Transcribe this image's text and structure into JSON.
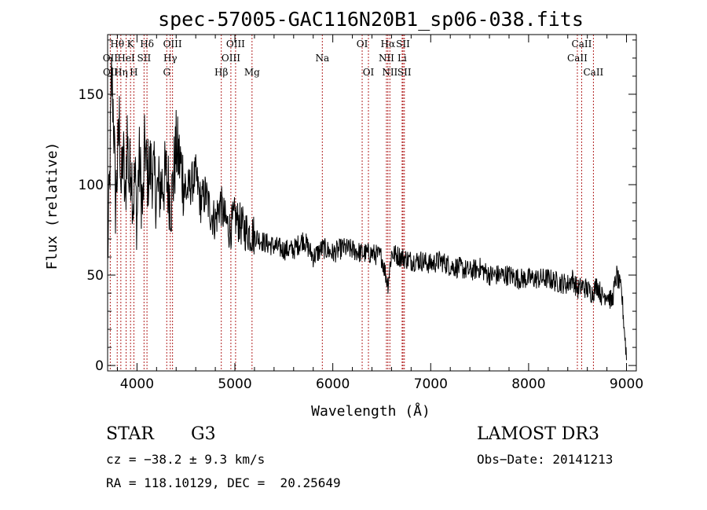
{
  "chart_data": {
    "type": "line",
    "title": "spec-57005-GAC116N20B1_sp06-038.fits",
    "xlabel": "Wavelength (Å)",
    "ylabel": "Flux (relative)",
    "xlim": [
      3700,
      9100
    ],
    "ylim": [
      -3,
      183
    ],
    "x_ticks": [
      4000,
      5000,
      6000,
      7000,
      8000,
      9000
    ],
    "y_ticks": [
      0,
      50,
      100,
      150
    ],
    "series": [
      {
        "name": "flux",
        "x": [
          3700,
          3720,
          3740,
          3760,
          3780,
          3800,
          3820,
          3840,
          3860,
          3880,
          3900,
          3920,
          3940,
          3960,
          3980,
          4000,
          4020,
          4040,
          4060,
          4080,
          4100,
          4150,
          4200,
          4250,
          4300,
          4350,
          4400,
          4450,
          4500,
          4550,
          4600,
          4650,
          4700,
          4750,
          4800,
          4850,
          4900,
          4950,
          5000,
          5100,
          5200,
          5300,
          5400,
          5500,
          5600,
          5700,
          5800,
          5900,
          6000,
          6100,
          6200,
          6300,
          6400,
          6500,
          6563,
          6600,
          6700,
          6800,
          6900,
          7000,
          7100,
          7200,
          7300,
          7400,
          7500,
          7600,
          7700,
          7800,
          7900,
          8000,
          8100,
          8200,
          8300,
          8400,
          8450,
          8500,
          8550,
          8600,
          8650,
          8700,
          8750,
          8800,
          8850,
          8900,
          8950,
          9000
        ],
        "y": [
          60,
          100,
          160,
          140,
          90,
          110,
          135,
          95,
          120,
          85,
          130,
          100,
          115,
          90,
          105,
          80,
          115,
          100,
          85,
          125,
          105,
          110,
          95,
          100,
          105,
          90,
          120,
          110,
          95,
          100,
          105,
          90,
          95,
          85,
          80,
          90,
          80,
          75,
          82,
          75,
          72,
          68,
          66,
          64,
          64,
          70,
          60,
          65,
          62,
          65,
          64,
          62,
          62,
          60,
          45,
          62,
          60,
          58,
          58,
          56,
          58,
          55,
          54,
          52,
          54,
          50,
          50,
          50,
          48,
          48,
          48,
          48,
          46,
          45,
          48,
          42,
          44,
          42,
          40,
          45,
          38,
          40,
          35,
          50,
          40,
          5
        ]
      }
    ],
    "line_labels": [
      {
        "text": "Hθ",
        "wavelength": 3798
      },
      {
        "text": "K",
        "wavelength": 3934
      },
      {
        "text": "Hδ",
        "wavelength": 4102
      },
      {
        "text": "OIII",
        "wavelength": 4363
      },
      {
        "text": "OIII",
        "wavelength": 5007
      },
      {
        "text": "OI",
        "wavelength": 6300
      },
      {
        "text": "Hα",
        "wavelength": 6563
      },
      {
        "text": "SII",
        "wavelength": 6717
      },
      {
        "text": "CaII",
        "wavelength": 8542
      },
      {
        "text": "OII",
        "wavelength": 3727
      },
      {
        "text": "HeI",
        "wavelength": 3889
      },
      {
        "text": "SII",
        "wavelength": 4072
      },
      {
        "text": "Hγ",
        "wavelength": 4340
      },
      {
        "text": "OIII",
        "wavelength": 4959
      },
      {
        "text": "Na",
        "wavelength": 5893
      },
      {
        "text": "NII",
        "wavelength": 6548
      },
      {
        "text": "Li",
        "wavelength": 6708
      },
      {
        "text": "CaII",
        "wavelength": 8498
      },
      {
        "text": "OII",
        "wavelength": 3729
      },
      {
        "text": "Hη",
        "wavelength": 3835
      },
      {
        "text": "H",
        "wavelength": 3968
      },
      {
        "text": "G",
        "wavelength": 4304
      },
      {
        "text": "Hβ",
        "wavelength": 4861
      },
      {
        "text": "Mg",
        "wavelength": 5175
      },
      {
        "text": "OI",
        "wavelength": 6364
      },
      {
        "text": "NII",
        "wavelength": 6583
      },
      {
        "text": "SII",
        "wavelength": 6731
      },
      {
        "text": "CaII",
        "wavelength": 8662
      }
    ],
    "line_markers": [
      3727,
      3798,
      3835,
      3889,
      3934,
      3968,
      4072,
      4102,
      4304,
      4340,
      4363,
      4861,
      4959,
      5007,
      5175,
      5893,
      6300,
      6364,
      6548,
      6563,
      6583,
      6708,
      6717,
      6731,
      8498,
      8542,
      8662
    ]
  },
  "info": {
    "object_class": "STAR",
    "subclass": "G3",
    "survey": "LAMOST DR3",
    "cz": "cz = −38.2 ± 9.3 km/s",
    "obs_date": "Obs−Date: 20141213",
    "coords": "RA = 118.10129, DEC =  20.25649"
  },
  "colors": {
    "spectrum": "#000000",
    "markers": "#b22222"
  }
}
